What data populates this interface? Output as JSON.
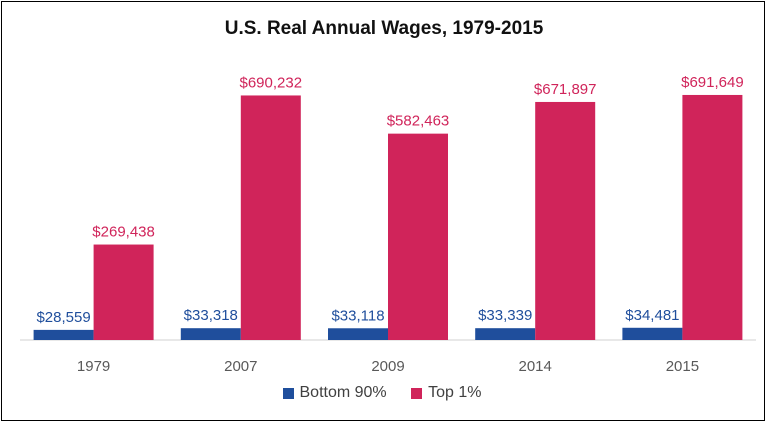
{
  "chart_data": {
    "type": "bar",
    "title": "U.S. Real Annual Wages, 1979-2015",
    "xlabel": "",
    "ylabel": "",
    "categories": [
      "1979",
      "2007",
      "2009",
      "2014",
      "2015"
    ],
    "ylim": [
      0,
      700000
    ],
    "grid": false,
    "legend": "bottom",
    "series": [
      {
        "name": "Bottom 90%",
        "color": "#1F4E9C",
        "values": [
          28559,
          33318,
          33118,
          33339,
          34481
        ],
        "labels": [
          "$28,559",
          "$33,318",
          "$33,118",
          "$33,339",
          "$34,481"
        ]
      },
      {
        "name": "Top 1%",
        "color": "#D0245A",
        "values": [
          269438,
          690232,
          582463,
          671897,
          691649
        ],
        "labels": [
          "$269,438",
          "$690,232",
          "$582,463",
          "$671,897",
          "$691,649"
        ]
      }
    ]
  }
}
